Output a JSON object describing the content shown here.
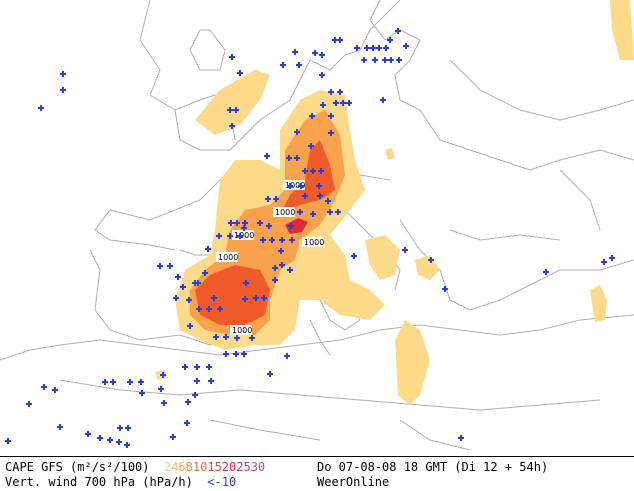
{
  "map": {
    "contour_label": "1000",
    "cape_color_scale": [
      "#fdd98a",
      "#fcc36b",
      "#f9a24e",
      "#f57f3a",
      "#ef5b2a",
      "#e63c27",
      "#dd2a3c",
      "#d0295f"
    ],
    "wind_marker_color": "#2b3ddb",
    "coast_color": "#aaaaaa"
  },
  "legend": {
    "cape_title": "CAPE GFS (m²/s²/100)",
    "cape_levels": [
      {
        "label": "2",
        "color": "#fcd084"
      },
      {
        "label": "4",
        "color": "#fbbd62"
      },
      {
        "label": "6",
        "color": "#f8a548"
      },
      {
        "label": "8",
        "color": "#f58c3a"
      },
      {
        "label": "10",
        "color": "#ef6b2d"
      },
      {
        "label": "15",
        "color": "#e54a2a"
      },
      {
        "label": "20",
        "color": "#dc3245"
      },
      {
        "label": "25",
        "color": "#c73a82"
      },
      {
        "label": "30",
        "color": "#b44cc4"
      }
    ],
    "wind_title": "Vert. wind 700 hPa (hPa/h)",
    "wind_threshold": "<-10",
    "wind_threshold_color": "#2b3ddb",
    "timestamp": "Do 07-08-08 18 GMT (Di 12 + 54h)",
    "brand": "WeerOnline"
  }
}
